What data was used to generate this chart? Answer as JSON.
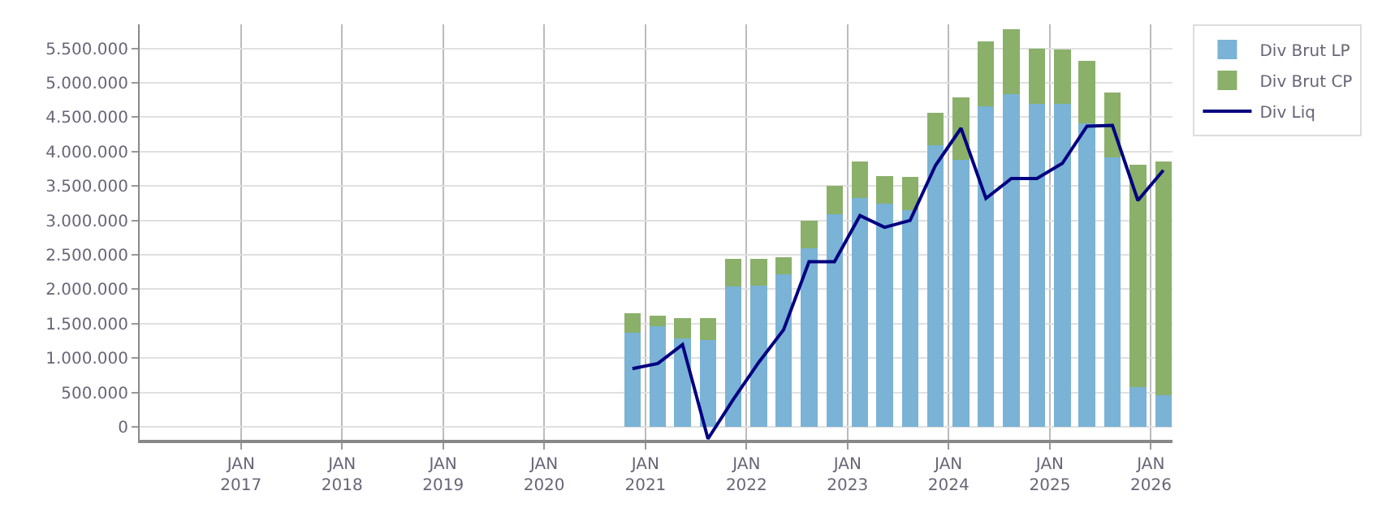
{
  "chart_data": {
    "type": "bar",
    "stacked": true,
    "x": [
      "2020-11-15",
      "2021-02-15",
      "2021-05-15",
      "2021-08-15",
      "2021-11-15",
      "2022-02-15",
      "2022-05-15",
      "2022-08-15",
      "2022-11-15",
      "2023-02-15",
      "2023-05-15",
      "2023-08-15",
      "2023-11-15",
      "2024-02-15",
      "2024-05-15",
      "2024-08-15",
      "2024-11-15",
      "2025-02-15",
      "2025-05-15",
      "2025-08-15",
      "2025-11-15",
      "2026-02-15"
    ],
    "series": [
      {
        "name": "Div Brut LP",
        "color": "#7ab3d5",
        "values": [
          1370000,
          1460000,
          1280000,
          1260000,
          2040000,
          2050000,
          2220000,
          2590000,
          3090000,
          3330000,
          3240000,
          3150000,
          4090000,
          3880000,
          4660000,
          4840000,
          4690000,
          4690000,
          4410000,
          3910000,
          580000,
          460000
        ]
      },
      {
        "name": "Div Brut CP",
        "color": "#8ab06a",
        "values": [
          275000,
          160000,
          295000,
          315000,
          400000,
          390000,
          250000,
          400000,
          410000,
          530000,
          410000,
          480000,
          480000,
          910000,
          940000,
          940000,
          810000,
          790000,
          910000,
          950000,
          3230000,
          3400000
        ]
      },
      {
        "name": "Div Liq",
        "color": "#000080",
        "type": "line",
        "values": [
          845000,
          920000,
          1195000,
          -175000,
          400000,
          940000,
          1410000,
          2400000,
          2400000,
          3070000,
          2900000,
          3000000,
          3800000,
          4340000,
          3320000,
          3610000,
          3610000,
          3830000,
          4370000,
          4380000,
          3290000,
          3730000
        ]
      }
    ],
    "ylim": [
      -190000,
      5850000
    ],
    "yticks": [
      {
        "value": 0,
        "label": "0"
      },
      {
        "value": 500000,
        "label": "500.000"
      },
      {
        "value": 1000000,
        "label": "1.000.000"
      },
      {
        "value": 1500000,
        "label": "1.500.000"
      },
      {
        "value": 2000000,
        "label": "2.000.000"
      },
      {
        "value": 2500000,
        "label": "2.500.000"
      },
      {
        "value": 3000000,
        "label": "3.000.000"
      },
      {
        "value": 3500000,
        "label": "3.500.000"
      },
      {
        "value": 4000000,
        "label": "4.000.000"
      },
      {
        "value": 4500000,
        "label": "4.500.000"
      },
      {
        "value": 5000000,
        "label": "5.000.000"
      },
      {
        "value": 5500000,
        "label": "5.500.000"
      }
    ],
    "xlim": [
      "2016-01-01",
      "2026-03-20"
    ],
    "xticks": [
      {
        "value": "2017-01-01",
        "label": "JAN\n2017"
      },
      {
        "value": "2018-01-01",
        "label": "JAN\n2018"
      },
      {
        "value": "2019-01-01",
        "label": "JAN\n2019"
      },
      {
        "value": "2020-01-01",
        "label": "JAN\n2020"
      },
      {
        "value": "2021-01-01",
        "label": "JAN\n2021"
      },
      {
        "value": "2022-01-01",
        "label": "JAN\n2022"
      },
      {
        "value": "2023-01-01",
        "label": "JAN\n2023"
      },
      {
        "value": "2024-01-01",
        "label": "JAN\n2024"
      },
      {
        "value": "2025-01-01",
        "label": "JAN\n2025"
      },
      {
        "value": "2026-01-01",
        "label": "JAN\n2026"
      }
    ],
    "grid": true,
    "legend": "top right",
    "marker": "none",
    "line_style": "solid"
  }
}
